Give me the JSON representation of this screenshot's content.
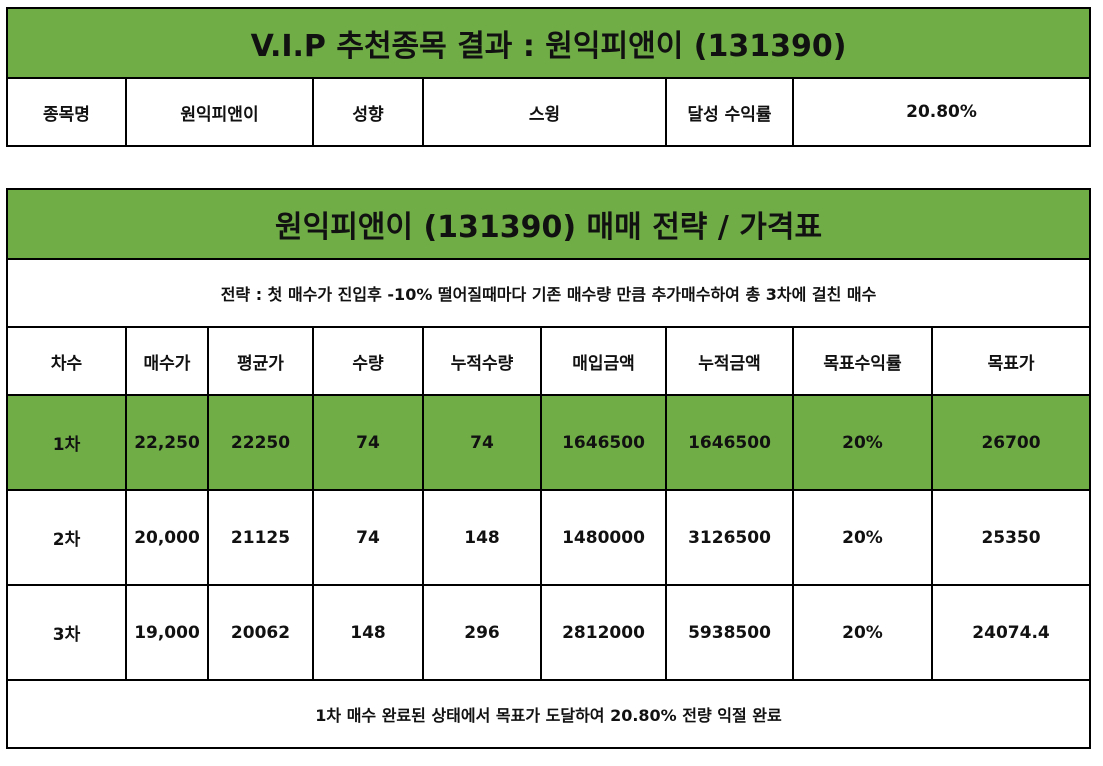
{
  "summary": {
    "title": "V.I.P 추천종목 결과 : 원익피앤이 (131390)",
    "name_label": "종목명",
    "name_value": "원익피앤이",
    "style_label": "성향",
    "style_value": "스윙",
    "return_label": "달성 수익률",
    "return_value": "20.80%"
  },
  "strategy": {
    "title": "원익피앤이 (131390) 매매 전략 / 가격표",
    "description": "전략 : 첫 매수가 진입후 -10% 떨어질때마다 기존 매수량 만큼 추가매수하여 총 3차에 걸친 매수",
    "columns": [
      "차수",
      "매수가",
      "평균가",
      "수량",
      "누적수량",
      "매입금액",
      "누적금액",
      "목표수익률",
      "목표가"
    ],
    "rows": [
      [
        "1차",
        "22,250",
        "22250",
        "74",
        "74",
        "1646500",
        "1646500",
        "20%",
        "26700"
      ],
      [
        "2차",
        "20,000",
        "21125",
        "74",
        "148",
        "1480000",
        "3126500",
        "20%",
        "25350"
      ],
      [
        "3차",
        "19,000",
        "20062",
        "148",
        "296",
        "2812000",
        "5938500",
        "20%",
        "24074.4"
      ]
    ],
    "highlight_color": "#70ad47",
    "footer": "1차 매수 완료된 상태에서 목표가 도달하여 20.80% 전량 익절 완료"
  }
}
